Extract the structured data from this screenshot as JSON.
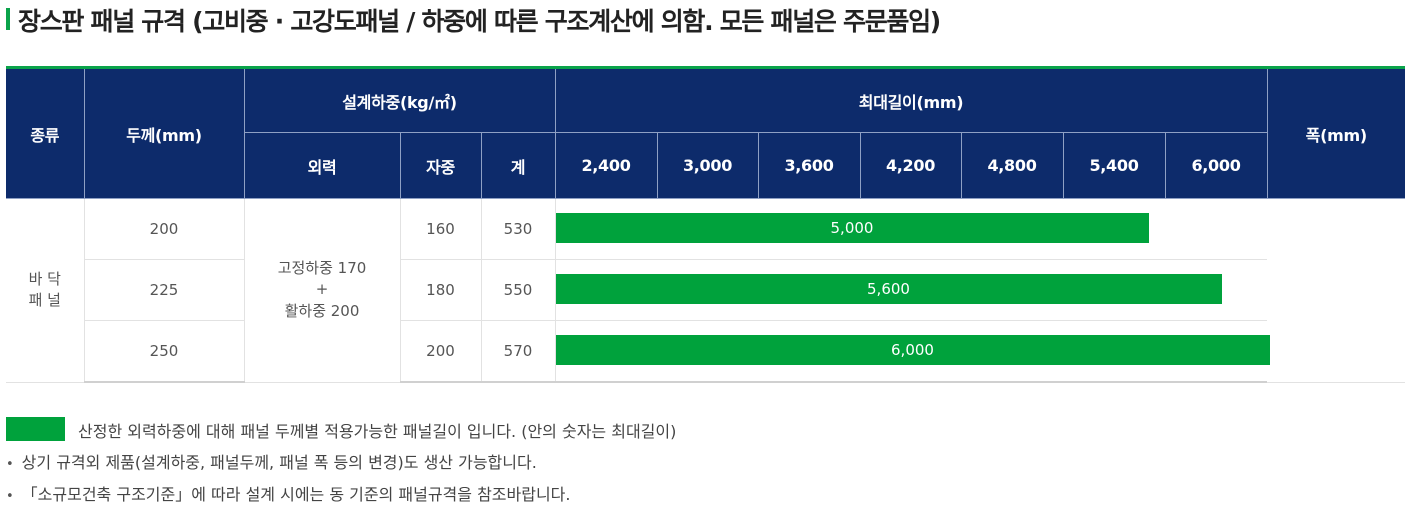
{
  "page_title": "장스판 패널 규격 (고비중 · 고강도패널 / 하중에 따른 구조계산에 의함. 모든 패널은 주문품임)",
  "colors": {
    "accent_green": "#00a23c",
    "header_navy": "#0d2b6b"
  },
  "table": {
    "headers": {
      "type": "종류",
      "thickness": "두께(mm)",
      "design_load": "설계하중(kg/㎡)",
      "max_length": "최대길이(mm)",
      "width": "폭(mm)",
      "external_force": "외력",
      "self_weight": "자중",
      "total": "계",
      "spans": [
        "2,400",
        "3,000",
        "3,600",
        "4,200",
        "4,800",
        "5,400",
        "6,000"
      ]
    },
    "kind_line1": "바 닥",
    "kind_line2": "패 널",
    "external_load_line1": "고정하중 170",
    "external_load_line2": "+",
    "external_load_line3": "활하중 200",
    "rows": [
      {
        "thickness": "200",
        "self_weight": "160",
        "total": "530",
        "max_length_label": "5,000",
        "max_length": 5000
      },
      {
        "thickness": "225",
        "self_weight": "180",
        "total": "550",
        "max_length_label": "5,600",
        "max_length": 5600
      },
      {
        "thickness": "250",
        "self_weight": "200",
        "total": "570",
        "max_length_label": "6,000",
        "max_length": 6000
      }
    ]
  },
  "legend_text": "산정한 외력하중에 대해 패널 두께별 적용가능한 패널길이 입니다. (안의 숫자는 최대길이)",
  "notes": [
    "상기 규격외 제품(설계하중, 패널두께, 패널 폭 등의 변경)도 생산 가능합니다.",
    "「소규모건축 구조기준」에 따라 설계 시에는 동 기준의 패널규격을 참조바랍니다."
  ]
}
